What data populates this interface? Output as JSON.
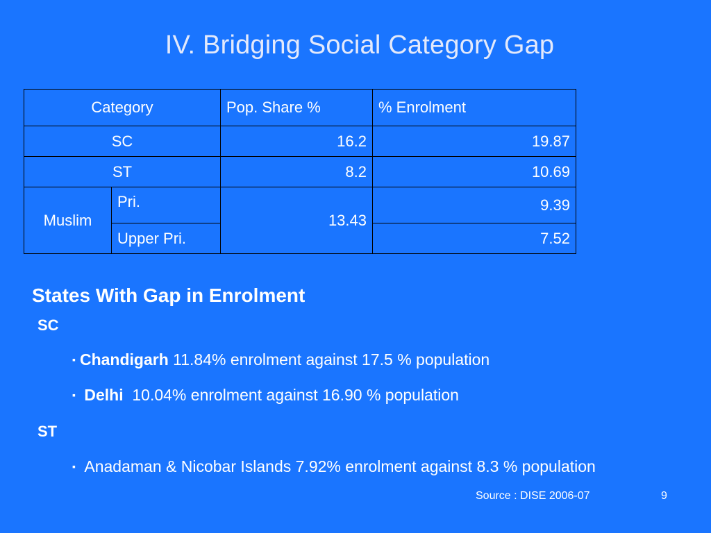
{
  "slide": {
    "title": "IV. Bridging Social Category Gap",
    "colors": {
      "background": "#1a75ff",
      "title": "#e3e9fb",
      "text": "#ffffff",
      "table_border": "#000000"
    }
  },
  "table": {
    "headers": [
      "Category",
      "Pop. Share %",
      "% Enrolment"
    ],
    "rows": [
      {
        "category": "SC",
        "pop_share": "16.2",
        "enrolment": "19.87"
      },
      {
        "category": "ST",
        "pop_share": "8.2",
        "enrolment": "10.69"
      }
    ],
    "muslim": {
      "category": "Muslim",
      "pop_share": "13.43",
      "sub_rows": [
        {
          "level": "Pri.",
          "enrolment": "9.39"
        },
        {
          "level": "Upper Pri.",
          "enrolment": "7.52"
        }
      ]
    }
  },
  "gap_section": {
    "heading": "States With Gap in Enrolment",
    "groups": [
      {
        "label": "SC",
        "items": [
          {
            "bullet": "▪",
            "state": "Chandigarh",
            "text": " 11.84% enrolment against 17.5 % population"
          },
          {
            "bullet": "▪",
            "state": "Delhi",
            "text": "  10.04% enrolment against 16.90 % population"
          }
        ]
      },
      {
        "label": "ST",
        "items": [
          {
            "bullet": "▪",
            "state": "",
            "text": "Anadaman & Nicobar Islands 7.92% enrolment against 8.3 % population"
          }
        ]
      }
    ]
  },
  "footer": {
    "source": "Source : DISE 2006-07",
    "page_number": "9"
  }
}
